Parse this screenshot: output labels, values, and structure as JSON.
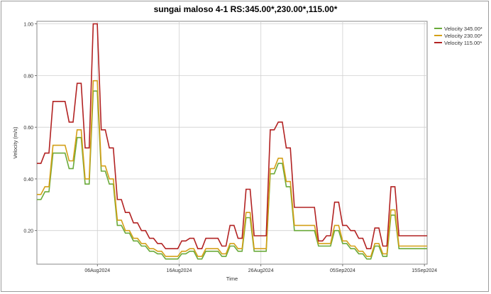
{
  "chart_data": {
    "type": "line",
    "title": "sungai maloso 4-1  RS:345.00*,230.00*,115.00*",
    "xlabel": "Time",
    "ylabel": "Velocity (m/s)",
    "ylim": [
      0.07,
      1.01
    ],
    "y_ticks": [
      "0.20",
      "0.40",
      "0.60",
      "0.80",
      "1.00"
    ],
    "x_ticks": [
      "06Aug2024",
      "16Aug2024",
      "26Aug2024",
      "05Sep2024",
      "15Sep2024"
    ],
    "grid": true,
    "legend_position": "right",
    "x": [
      0,
      1,
      2,
      3,
      4,
      5,
      6,
      7,
      8,
      9,
      10,
      11,
      12,
      13,
      14,
      15,
      16,
      17,
      18,
      19,
      20,
      21,
      22,
      23,
      24,
      25,
      26,
      27,
      28,
      29,
      30,
      31,
      32,
      33,
      34,
      35,
      36,
      37,
      38,
      39,
      40,
      41,
      42,
      43,
      44,
      45,
      46,
      47,
      48,
      49,
      50,
      51,
      52,
      53,
      54,
      55,
      56,
      57,
      58,
      59,
      60,
      61,
      62,
      63,
      64,
      65,
      66,
      67,
      68,
      69,
      70,
      71,
      72,
      73,
      74,
      75,
      76,
      77,
      78,
      79,
      80,
      81,
      82,
      83,
      84,
      85,
      86,
      87,
      88,
      89,
      90,
      91,
      92,
      93,
      94,
      95,
      96,
      97
    ],
    "series": [
      {
        "name": "Velocity 345.00*",
        "color": "#6aaa3a",
        "values": [
          0.32,
          0.32,
          0.35,
          0.35,
          0.5,
          0.5,
          0.5,
          0.5,
          0.44,
          0.44,
          0.56,
          0.56,
          0.38,
          0.38,
          0.74,
          0.74,
          0.43,
          0.43,
          0.38,
          0.38,
          0.22,
          0.22,
          0.19,
          0.19,
          0.16,
          0.16,
          0.14,
          0.14,
          0.12,
          0.12,
          0.11,
          0.11,
          0.09,
          0.09,
          0.09,
          0.09,
          0.11,
          0.11,
          0.12,
          0.12,
          0.09,
          0.09,
          0.12,
          0.12,
          0.12,
          0.12,
          0.1,
          0.1,
          0.14,
          0.14,
          0.12,
          0.12,
          0.25,
          0.25,
          0.12,
          0.12,
          0.12,
          0.12,
          0.42,
          0.42,
          0.46,
          0.46,
          0.37,
          0.37,
          0.2,
          0.2,
          0.2,
          0.2,
          0.2,
          0.2,
          0.14,
          0.14,
          0.14,
          0.14,
          0.2,
          0.2,
          0.15,
          0.15,
          0.13,
          0.13,
          0.11,
          0.11,
          0.09,
          0.09,
          0.14,
          0.14,
          0.1,
          0.1,
          0.26,
          0.26,
          0.13,
          0.13,
          0.13,
          0.13,
          0.13,
          0.13,
          0.13,
          0.13
        ]
      },
      {
        "name": "Velocity 230.00*",
        "color": "#d4a017",
        "values": [
          0.34,
          0.34,
          0.37,
          0.37,
          0.53,
          0.53,
          0.53,
          0.53,
          0.47,
          0.47,
          0.59,
          0.59,
          0.4,
          0.4,
          0.78,
          0.78,
          0.45,
          0.45,
          0.4,
          0.4,
          0.24,
          0.24,
          0.2,
          0.2,
          0.17,
          0.17,
          0.15,
          0.15,
          0.13,
          0.13,
          0.12,
          0.12,
          0.1,
          0.1,
          0.1,
          0.1,
          0.12,
          0.12,
          0.13,
          0.13,
          0.1,
          0.1,
          0.13,
          0.13,
          0.13,
          0.13,
          0.11,
          0.11,
          0.15,
          0.15,
          0.13,
          0.13,
          0.27,
          0.27,
          0.13,
          0.13,
          0.13,
          0.13,
          0.44,
          0.44,
          0.48,
          0.48,
          0.39,
          0.39,
          0.22,
          0.22,
          0.22,
          0.22,
          0.22,
          0.22,
          0.15,
          0.15,
          0.15,
          0.15,
          0.22,
          0.22,
          0.16,
          0.16,
          0.14,
          0.14,
          0.12,
          0.12,
          0.1,
          0.1,
          0.15,
          0.15,
          0.11,
          0.11,
          0.28,
          0.28,
          0.14,
          0.14,
          0.14,
          0.14,
          0.14,
          0.14,
          0.14,
          0.14
        ]
      },
      {
        "name": "Velocity 115.00*",
        "color": "#b22222",
        "values": [
          0.46,
          0.46,
          0.5,
          0.5,
          0.7,
          0.7,
          0.7,
          0.7,
          0.62,
          0.62,
          0.77,
          0.77,
          0.52,
          0.52,
          1.0,
          1.0,
          0.59,
          0.59,
          0.52,
          0.52,
          0.32,
          0.32,
          0.27,
          0.27,
          0.23,
          0.23,
          0.2,
          0.2,
          0.17,
          0.17,
          0.15,
          0.15,
          0.13,
          0.13,
          0.13,
          0.13,
          0.16,
          0.16,
          0.17,
          0.17,
          0.13,
          0.13,
          0.17,
          0.17,
          0.17,
          0.17,
          0.14,
          0.14,
          0.22,
          0.22,
          0.17,
          0.17,
          0.36,
          0.36,
          0.18,
          0.18,
          0.18,
          0.18,
          0.59,
          0.59,
          0.62,
          0.62,
          0.52,
          0.52,
          0.29,
          0.29,
          0.29,
          0.29,
          0.29,
          0.29,
          0.16,
          0.16,
          0.18,
          0.18,
          0.31,
          0.31,
          0.22,
          0.22,
          0.2,
          0.2,
          0.17,
          0.17,
          0.13,
          0.13,
          0.21,
          0.21,
          0.14,
          0.14,
          0.37,
          0.37,
          0.18,
          0.18,
          0.18,
          0.18,
          0.18,
          0.18,
          0.18,
          0.18
        ]
      }
    ]
  }
}
